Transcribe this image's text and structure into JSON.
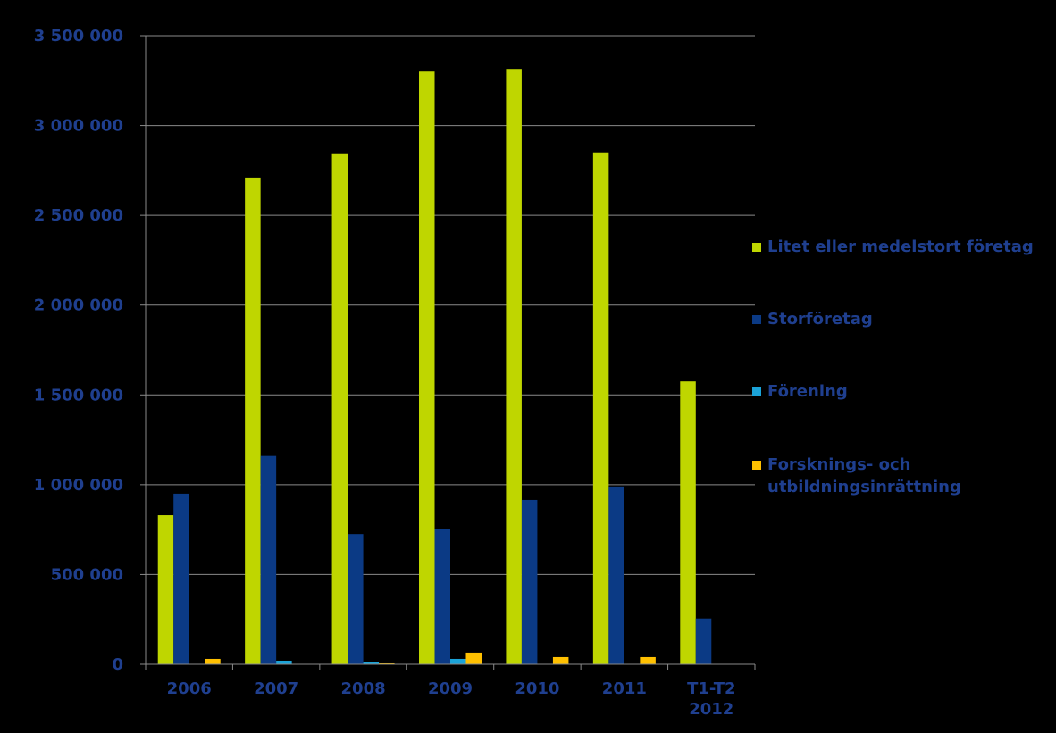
{
  "chart_data": {
    "type": "bar",
    "categories": [
      "2006",
      "2007",
      "2008",
      "2009",
      "2010",
      "2011",
      "T1-T2\n2012"
    ],
    "series": [
      {
        "name": "Litet eller medelstort företag",
        "color": "#BFD600",
        "values": [
          830000,
          2710000,
          2845000,
          3300000,
          3315000,
          2850000,
          1575000
        ]
      },
      {
        "name": "Storföretag",
        "color": "#0B3A85",
        "values": [
          950000,
          1160000,
          725000,
          755000,
          915000,
          990000,
          255000
        ]
      },
      {
        "name": "Förening",
        "color": "#1BA3D8",
        "values": [
          0,
          20000,
          10000,
          30000,
          0,
          0,
          0
        ]
      },
      {
        "name": "Forsknings- och\nutbildningsinrättning",
        "color": "#FFC000",
        "values": [
          30000,
          0,
          5000,
          65000,
          40000,
          40000,
          0
        ]
      }
    ],
    "y_ticks": [
      "0",
      "500 000",
      "1 000 000",
      "1 500 000",
      "2 000 000",
      "2 500 000",
      "3 000 000",
      "3 500 000"
    ],
    "ylim": [
      0,
      3500000
    ],
    "grid": true,
    "legend_position": "right"
  }
}
